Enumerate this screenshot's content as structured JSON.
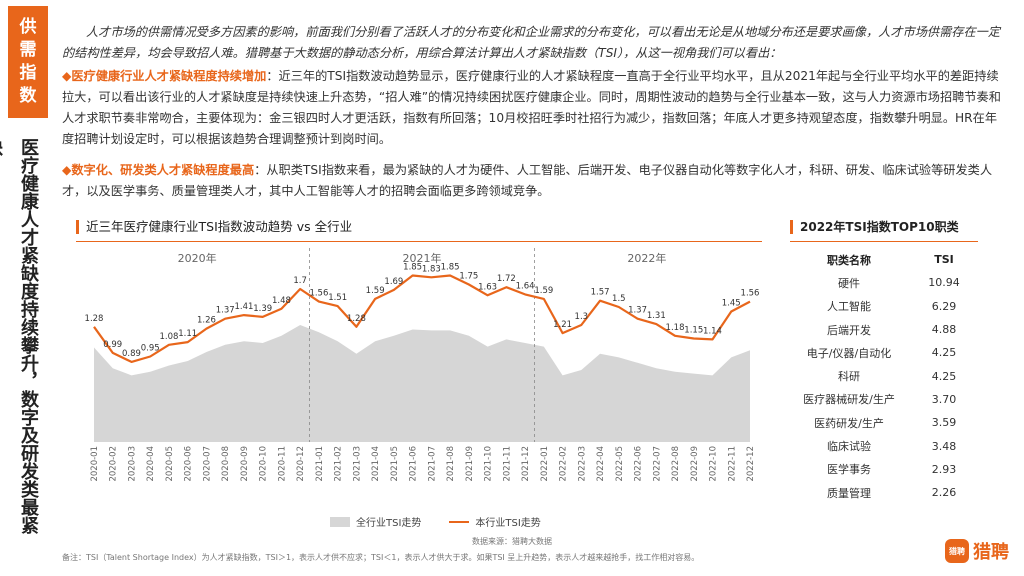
{
  "side_tag": "供需指数",
  "side_title": "医疗健康人才紧缺度持续攀升，数字及研发类最紧缺",
  "intro": "人才市场的供需情况受多方因素的影响，前面我们分别看了活跃人才的分布变化和企业需求的分布变化，可以看出无论是从地域分布还是要求画像，人才市场供需存在一定的结构性差异，均会导致招人难。猎聘基于大数据的静动态分析，用综合算法计算出人才紧缺指数（TSI），从这一视角我们可以看出：",
  "bullet_marker": "◆",
  "bullet1": {
    "head": "医疗健康行业人才紧缺程度持续增加",
    "body": "：近三年的TSI指数波动趋势显示，医疗健康行业的人才紧缺程度一直高于全行业平均水平，且从2021年起与全行业平均水平的差距持续拉大，可以看出该行业的人才紧缺度是持续快速上升态势，“招人难”的情况持续困扰医疗健康企业。同时，周期性波动的趋势与全行业基本一致，这与人力资源市场招聘节奏和人才求职节奏非常吻合，主要体现为：金三银四时人才更活跃，指数有所回落；10月校招旺季时社招行为减少，指数回落；年底人才更多持观望态度，指数攀升明显。HR在年度招聘计划设定时，可以根据该趋势合理调整预计到岗时间。"
  },
  "bullet2": {
    "head": "数字化、研发类人才紧缺程度最高",
    "body": "：从职类TSI指数来看，最为紧缺的人才为硬件、人工智能、后端开发、电子仪器自动化等数字化人才，科研、研发、临床试验等研发类人才，以及医学事务、质量管理类人才，其中人工智能等人才的招聘会面临更多跨领域竞争。"
  },
  "chart_title": "近三年医疗健康行业TSI指数波动趋势 vs 全行业",
  "legend": {
    "all": "全行业TSI走势",
    "industry": "本行业TSI走势"
  },
  "source": "数据来源：猎聘大数据",
  "footnote": "备注：TSI（Talent Shortage Index）为人才紧缺指数，TSI＞1，表示人才供不应求；TSI＜1，表示人才供大于求。如果TSI 呈上升趋势，表示人才越来越抢手，找工作相对容易。",
  "top10": {
    "title": "2022年TSI指数TOP10职类",
    "header_name": "职类名称",
    "header_value": "TSI",
    "rows": [
      {
        "name": "硬件",
        "value": "10.94"
      },
      {
        "name": "人工智能",
        "value": "6.29"
      },
      {
        "name": "后端开发",
        "value": "4.88"
      },
      {
        "name": "电子/仪器/自动化",
        "value": "4.25"
      },
      {
        "name": "科研",
        "value": "4.25"
      },
      {
        "name": "医疗器械研发/生产",
        "value": "3.70"
      },
      {
        "name": "医药研发/生产",
        "value": "3.59"
      },
      {
        "name": "临床试验",
        "value": "3.48"
      },
      {
        "name": "医学事务",
        "value": "2.93"
      },
      {
        "name": "质量管理",
        "value": "2.26"
      }
    ]
  },
  "logo": {
    "badge": "猎聘",
    "text": "猎聘"
  },
  "colors": {
    "accent": "#e8661b",
    "area": "#d6d6d6",
    "divider": "#888888"
  },
  "chart_data": {
    "type": "line",
    "title": "近三年医疗健康行业TSI指数波动趋势 vs 全行业",
    "year_labels": [
      "2020年",
      "2021年",
      "2022年"
    ],
    "x": [
      "2020-01",
      "2020-02",
      "2020-03",
      "2020-04",
      "2020-05",
      "2020-06",
      "2020-07",
      "2020-08",
      "2020-09",
      "2020-10",
      "2020-11",
      "2020-12",
      "2021-01",
      "2021-02",
      "2021-03",
      "2021-04",
      "2021-05",
      "2021-06",
      "2021-07",
      "2021-08",
      "2021-09",
      "2021-10",
      "2021-11",
      "2021-12",
      "2022-01",
      "2022-02",
      "2022-03",
      "2022-04",
      "2022-05",
      "2022-06",
      "2022-07",
      "2022-08",
      "2022-09",
      "2022-10",
      "2022-11",
      "2022-12"
    ],
    "ylim": [
      0,
      2.0
    ],
    "series": [
      {
        "name": "本行业TSI走势",
        "style": "line",
        "values": [
          1.28,
          0.99,
          0.89,
          0.95,
          1.08,
          1.11,
          1.26,
          1.37,
          1.41,
          1.39,
          1.48,
          1.7,
          1.56,
          1.51,
          1.28,
          1.59,
          1.69,
          1.85,
          1.83,
          1.85,
          1.75,
          1.63,
          1.72,
          1.64,
          1.59,
          1.21,
          1.3,
          1.57,
          1.5,
          1.37,
          1.31,
          1.18,
          1.15,
          1.14,
          1.45,
          1.56
        ],
        "labels": [
          "1.28",
          "0.99",
          "0.89",
          "0.95",
          "1.08",
          "1.11",
          "1.26",
          "1.37",
          "1.41",
          "1.39",
          "1.48",
          "1.7",
          "1.56",
          "1.51",
          "1.28",
          "1.59",
          "1.69",
          "1.85",
          "1.83",
          "1.85",
          "1.75",
          "1.63",
          "1.72",
          "1.64",
          "1.59",
          "1.21",
          "1.3",
          "1.57",
          "1.5",
          "1.37",
          "1.31",
          "1.18",
          "1.15",
          "1.14",
          "1.45",
          "1.56"
        ]
      },
      {
        "name": "全行业TSI走势",
        "style": "area",
        "values": [
          1.05,
          0.82,
          0.74,
          0.78,
          0.85,
          0.9,
          1.0,
          1.08,
          1.12,
          1.1,
          1.18,
          1.3,
          1.22,
          1.12,
          0.98,
          1.12,
          1.18,
          1.25,
          1.24,
          1.24,
          1.18,
          1.06,
          1.14,
          1.1,
          1.06,
          0.74,
          0.8,
          0.98,
          0.94,
          0.88,
          0.82,
          0.78,
          0.76,
          0.74,
          0.94,
          1.02
        ]
      }
    ],
    "grid": false,
    "legend_position": "bottom"
  }
}
